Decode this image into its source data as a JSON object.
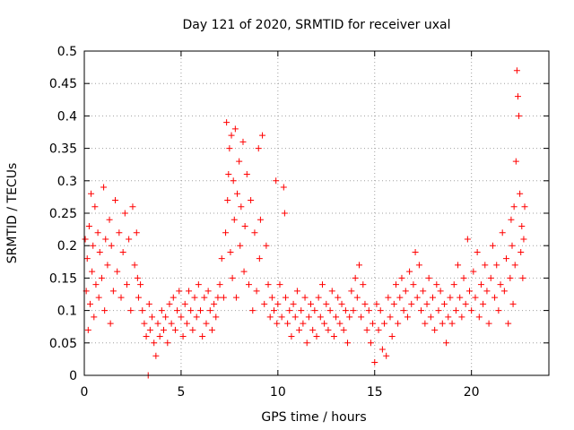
{
  "chart_data": {
    "type": "scatter",
    "title": "Day 121 of 2020, SRMTID for receiver uxal",
    "xlabel": "GPS time / hours",
    "ylabel": "SRMTID / TECUs",
    "xlim": [
      0,
      24
    ],
    "ylim": [
      0,
      0.5
    ],
    "x_ticks": [
      0,
      5,
      10,
      15,
      20
    ],
    "y_ticks": [
      0,
      0.05,
      0.1,
      0.15,
      0.2,
      0.25,
      0.3,
      0.35,
      0.4,
      0.45,
      0.5
    ],
    "x_tick_labels": [
      "0",
      "5",
      "10",
      "15",
      "20"
    ],
    "y_tick_labels": [
      "0",
      "0.05",
      "0.1",
      "0.15",
      "0.2",
      "0.25",
      "0.3",
      "0.35",
      "0.4",
      "0.45",
      "0.5"
    ],
    "grid": true,
    "marker": "plus",
    "color": "#ff0000",
    "series": [
      {
        "name": "SRMTID",
        "points": [
          [
            0.05,
            0.21
          ],
          [
            0.1,
            0.13
          ],
          [
            0.15,
            0.18
          ],
          [
            0.2,
            0.07
          ],
          [
            0.25,
            0.23
          ],
          [
            0.3,
            0.11
          ],
          [
            0.35,
            0.28
          ],
          [
            0.4,
            0.16
          ],
          [
            0.45,
            0.2
          ],
          [
            0.5,
            0.09
          ],
          [
            0.55,
            0.26
          ],
          [
            0.6,
            0.14
          ],
          [
            0.7,
            0.22
          ],
          [
            0.75,
            0.12
          ],
          [
            0.8,
            0.19
          ],
          [
            0.9,
            0.15
          ],
          [
            1.0,
            0.29
          ],
          [
            1.05,
            0.1
          ],
          [
            1.1,
            0.21
          ],
          [
            1.2,
            0.17
          ],
          [
            1.3,
            0.24
          ],
          [
            1.35,
            0.08
          ],
          [
            1.4,
            0.2
          ],
          [
            1.5,
            0.13
          ],
          [
            1.6,
            0.27
          ],
          [
            1.7,
            0.16
          ],
          [
            1.8,
            0.22
          ],
          [
            1.9,
            0.12
          ],
          [
            2.0,
            0.19
          ],
          [
            2.1,
            0.25
          ],
          [
            2.2,
            0.14
          ],
          [
            2.3,
            0.21
          ],
          [
            2.4,
            0.1
          ],
          [
            2.5,
            0.26
          ],
          [
            2.6,
            0.17
          ],
          [
            2.7,
            0.22
          ],
          [
            2.75,
            0.15
          ],
          [
            2.8,
            0.12
          ],
          [
            2.9,
            0.14
          ],
          [
            3.0,
            0.1
          ],
          [
            3.1,
            0.08
          ],
          [
            3.2,
            0.06
          ],
          [
            3.3,
            0.0
          ],
          [
            3.35,
            0.11
          ],
          [
            3.4,
            0.07
          ],
          [
            3.5,
            0.09
          ],
          [
            3.6,
            0.05
          ],
          [
            3.7,
            0.03
          ],
          [
            3.8,
            0.08
          ],
          [
            3.9,
            0.06
          ],
          [
            4.0,
            0.1
          ],
          [
            4.1,
            0.07
          ],
          [
            4.2,
            0.09
          ],
          [
            4.3,
            0.05
          ],
          [
            4.4,
            0.11
          ],
          [
            4.5,
            0.08
          ],
          [
            4.6,
            0.12
          ],
          [
            4.7,
            0.07
          ],
          [
            4.8,
            0.1
          ],
          [
            4.9,
            0.13
          ],
          [
            5.0,
            0.09
          ],
          [
            5.1,
            0.06
          ],
          [
            5.2,
            0.11
          ],
          [
            5.3,
            0.08
          ],
          [
            5.4,
            0.13
          ],
          [
            5.5,
            0.1
          ],
          [
            5.6,
            0.07
          ],
          [
            5.7,
            0.12
          ],
          [
            5.8,
            0.09
          ],
          [
            5.9,
            0.14
          ],
          [
            6.0,
            0.1
          ],
          [
            6.1,
            0.06
          ],
          [
            6.2,
            0.12
          ],
          [
            6.3,
            0.08
          ],
          [
            6.4,
            0.13
          ],
          [
            6.5,
            0.1
          ],
          [
            6.6,
            0.07
          ],
          [
            6.7,
            0.11
          ],
          [
            6.8,
            0.09
          ],
          [
            6.9,
            0.12
          ],
          [
            7.0,
            0.14
          ],
          [
            7.1,
            0.18
          ],
          [
            7.2,
            0.12
          ],
          [
            7.3,
            0.22
          ],
          [
            7.35,
            0.39
          ],
          [
            7.4,
            0.27
          ],
          [
            7.45,
            0.31
          ],
          [
            7.5,
            0.35
          ],
          [
            7.55,
            0.19
          ],
          [
            7.6,
            0.37
          ],
          [
            7.65,
            0.15
          ],
          [
            7.7,
            0.3
          ],
          [
            7.75,
            0.24
          ],
          [
            7.8,
            0.38
          ],
          [
            7.85,
            0.12
          ],
          [
            7.9,
            0.28
          ],
          [
            8.0,
            0.33
          ],
          [
            8.05,
            0.2
          ],
          [
            8.1,
            0.26
          ],
          [
            8.2,
            0.36
          ],
          [
            8.25,
            0.16
          ],
          [
            8.3,
            0.23
          ],
          [
            8.4,
            0.31
          ],
          [
            8.5,
            0.14
          ],
          [
            8.6,
            0.27
          ],
          [
            8.7,
            0.1
          ],
          [
            8.8,
            0.22
          ],
          [
            8.9,
            0.13
          ],
          [
            9.0,
            0.35
          ],
          [
            9.05,
            0.18
          ],
          [
            9.1,
            0.24
          ],
          [
            9.2,
            0.37
          ],
          [
            9.3,
            0.11
          ],
          [
            9.4,
            0.2
          ],
          [
            9.5,
            0.14
          ],
          [
            9.6,
            0.09
          ],
          [
            9.7,
            0.12
          ],
          [
            9.8,
            0.1
          ],
          [
            9.9,
            0.3
          ],
          [
            9.95,
            0.08
          ],
          [
            10.0,
            0.11
          ],
          [
            10.1,
            0.14
          ],
          [
            10.2,
            0.09
          ],
          [
            10.3,
            0.29
          ],
          [
            10.35,
            0.25
          ],
          [
            10.4,
            0.12
          ],
          [
            10.5,
            0.08
          ],
          [
            10.6,
            0.1
          ],
          [
            10.7,
            0.06
          ],
          [
            10.8,
            0.11
          ],
          [
            10.9,
            0.09
          ],
          [
            11.0,
            0.13
          ],
          [
            11.1,
            0.07
          ],
          [
            11.2,
            0.1
          ],
          [
            11.3,
            0.08
          ],
          [
            11.4,
            0.12
          ],
          [
            11.5,
            0.05
          ],
          [
            11.6,
            0.09
          ],
          [
            11.7,
            0.11
          ],
          [
            11.8,
            0.07
          ],
          [
            11.9,
            0.1
          ],
          [
            12.0,
            0.06
          ],
          [
            12.1,
            0.12
          ],
          [
            12.2,
            0.09
          ],
          [
            12.3,
            0.14
          ],
          [
            12.4,
            0.08
          ],
          [
            12.5,
            0.11
          ],
          [
            12.6,
            0.07
          ],
          [
            12.7,
            0.1
          ],
          [
            12.8,
            0.13
          ],
          [
            12.9,
            0.06
          ],
          [
            13.0,
            0.09
          ],
          [
            13.1,
            0.12
          ],
          [
            13.2,
            0.08
          ],
          [
            13.3,
            0.11
          ],
          [
            13.4,
            0.07
          ],
          [
            13.5,
            0.1
          ],
          [
            13.6,
            0.05
          ],
          [
            13.7,
            0.09
          ],
          [
            13.8,
            0.13
          ],
          [
            13.9,
            0.1
          ],
          [
            14.0,
            0.15
          ],
          [
            14.1,
            0.12
          ],
          [
            14.2,
            0.17
          ],
          [
            14.3,
            0.09
          ],
          [
            14.4,
            0.14
          ],
          [
            14.5,
            0.11
          ],
          [
            14.6,
            0.07
          ],
          [
            14.7,
            0.1
          ],
          [
            14.8,
            0.05
          ],
          [
            14.9,
            0.08
          ],
          [
            15.0,
            0.02
          ],
          [
            15.1,
            0.11
          ],
          [
            15.2,
            0.07
          ],
          [
            15.3,
            0.1
          ],
          [
            15.4,
            0.04
          ],
          [
            15.5,
            0.08
          ],
          [
            15.6,
            0.03
          ],
          [
            15.7,
            0.12
          ],
          [
            15.8,
            0.09
          ],
          [
            15.9,
            0.06
          ],
          [
            16.0,
            0.11
          ],
          [
            16.1,
            0.14
          ],
          [
            16.2,
            0.08
          ],
          [
            16.3,
            0.12
          ],
          [
            16.4,
            0.15
          ],
          [
            16.5,
            0.1
          ],
          [
            16.6,
            0.13
          ],
          [
            16.7,
            0.09
          ],
          [
            16.8,
            0.16
          ],
          [
            16.9,
            0.11
          ],
          [
            17.0,
            0.14
          ],
          [
            17.1,
            0.19
          ],
          [
            17.2,
            0.12
          ],
          [
            17.3,
            0.17
          ],
          [
            17.4,
            0.1
          ],
          [
            17.5,
            0.13
          ],
          [
            17.6,
            0.08
          ],
          [
            17.7,
            0.11
          ],
          [
            17.8,
            0.15
          ],
          [
            17.9,
            0.09
          ],
          [
            18.0,
            0.12
          ],
          [
            18.1,
            0.07
          ],
          [
            18.2,
            0.14
          ],
          [
            18.3,
            0.1
          ],
          [
            18.4,
            0.13
          ],
          [
            18.5,
            0.08
          ],
          [
            18.6,
            0.11
          ],
          [
            18.7,
            0.05
          ],
          [
            18.8,
            0.09
          ],
          [
            18.9,
            0.12
          ],
          [
            19.0,
            0.08
          ],
          [
            19.1,
            0.14
          ],
          [
            19.2,
            0.1
          ],
          [
            19.3,
            0.17
          ],
          [
            19.4,
            0.12
          ],
          [
            19.5,
            0.09
          ],
          [
            19.6,
            0.15
          ],
          [
            19.7,
            0.11
          ],
          [
            19.8,
            0.21
          ],
          [
            19.9,
            0.13
          ],
          [
            20.0,
            0.1
          ],
          [
            20.1,
            0.16
          ],
          [
            20.2,
            0.12
          ],
          [
            20.3,
            0.19
          ],
          [
            20.4,
            0.09
          ],
          [
            20.5,
            0.14
          ],
          [
            20.6,
            0.11
          ],
          [
            20.7,
            0.17
          ],
          [
            20.8,
            0.13
          ],
          [
            20.9,
            0.08
          ],
          [
            21.0,
            0.15
          ],
          [
            21.1,
            0.2
          ],
          [
            21.2,
            0.12
          ],
          [
            21.3,
            0.17
          ],
          [
            21.4,
            0.1
          ],
          [
            21.5,
            0.14
          ],
          [
            21.6,
            0.22
          ],
          [
            21.7,
            0.13
          ],
          [
            21.8,
            0.18
          ],
          [
            21.9,
            0.08
          ],
          [
            22.0,
            0.15
          ],
          [
            22.05,
            0.24
          ],
          [
            22.1,
            0.2
          ],
          [
            22.15,
            0.11
          ],
          [
            22.2,
            0.26
          ],
          [
            22.25,
            0.17
          ],
          [
            22.3,
            0.33
          ],
          [
            22.35,
            0.47
          ],
          [
            22.4,
            0.43
          ],
          [
            22.45,
            0.4
          ],
          [
            22.5,
            0.28
          ],
          [
            22.55,
            0.19
          ],
          [
            22.6,
            0.23
          ],
          [
            22.65,
            0.15
          ],
          [
            22.7,
            0.21
          ],
          [
            22.75,
            0.26
          ]
        ]
      }
    ]
  }
}
